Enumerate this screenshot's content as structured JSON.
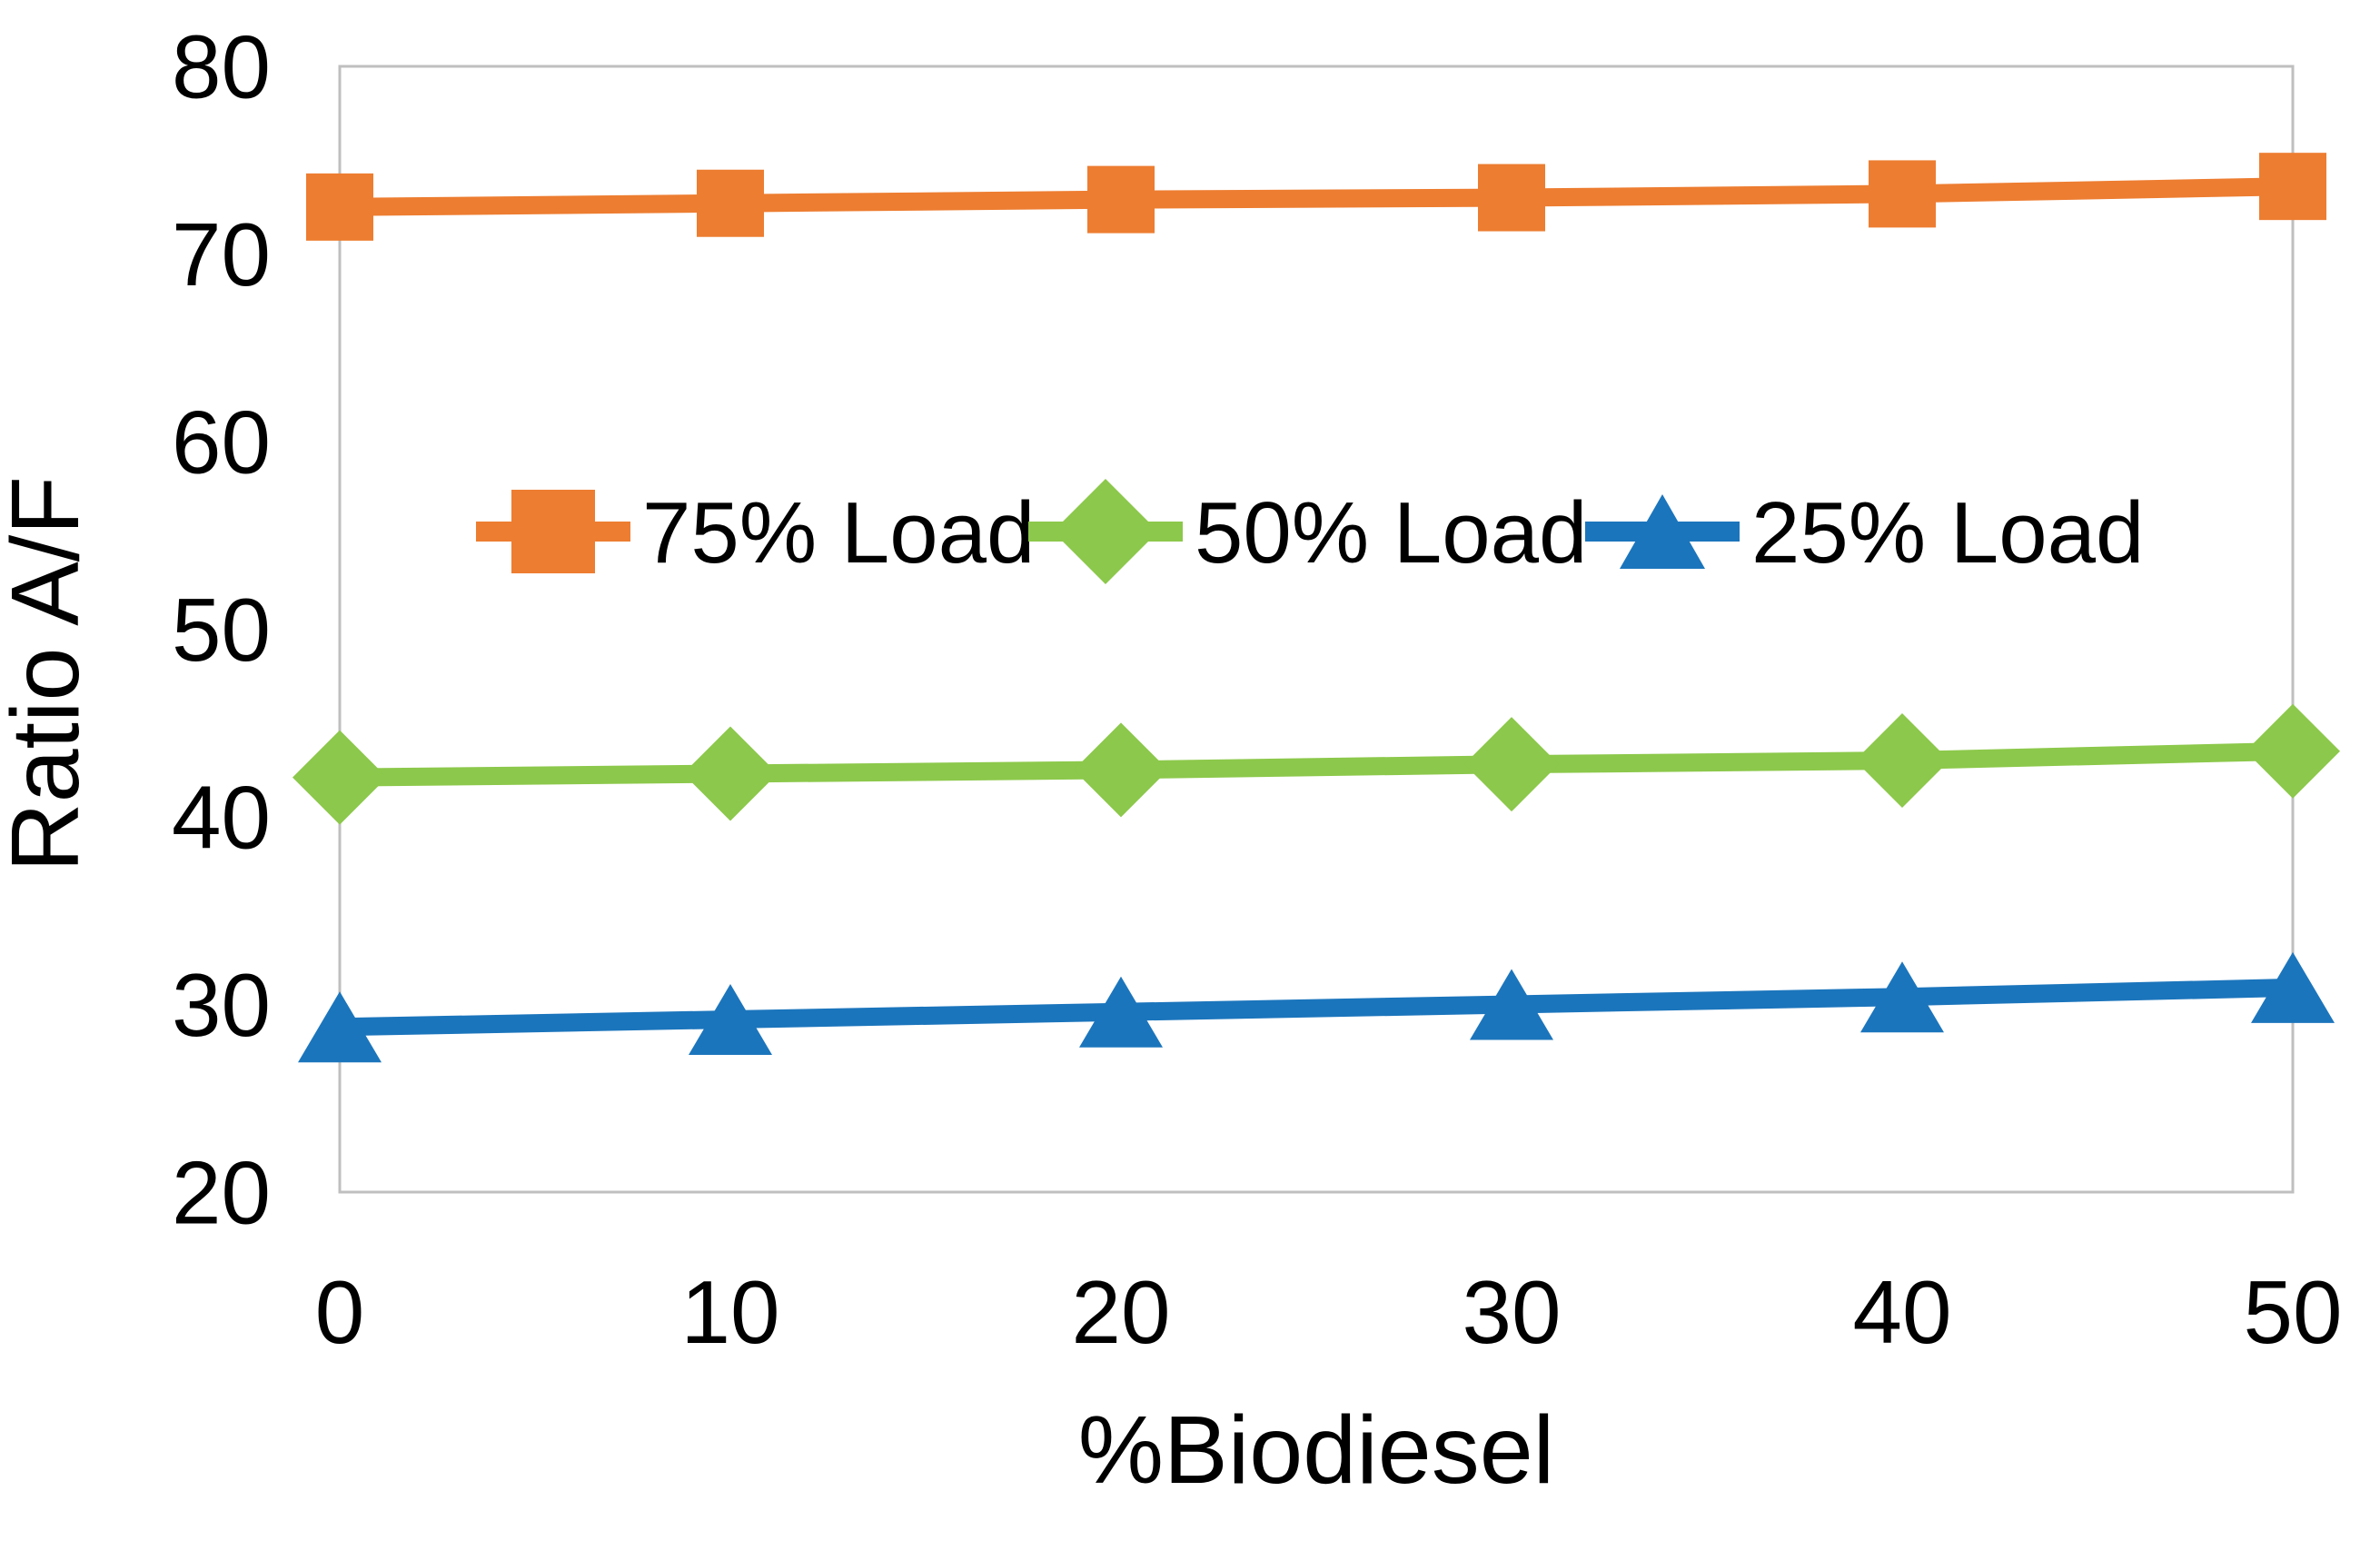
{
  "colors": {
    "background": "#FFFFFF",
    "plot_border": "#BFBFBF",
    "text": "#000000",
    "series_orange": "#ED7D31",
    "series_green": "#8CC84B",
    "series_blue": "#1B75BC"
  },
  "chart_data": {
    "type": "line",
    "title": "",
    "xlabel": "%Biodiesel",
    "ylabel": "Ratio A/F",
    "x": [
      0,
      10,
      20,
      30,
      40,
      50
    ],
    "xticks": [
      "0",
      "10",
      "20",
      "30",
      "40",
      "50"
    ],
    "yticks": [
      "20",
      "30",
      "40",
      "50",
      "60",
      "70",
      "80"
    ],
    "ytick_values": [
      20,
      30,
      40,
      50,
      60,
      70,
      80
    ],
    "xlim": [
      0,
      50
    ],
    "ylim": [
      20,
      80
    ],
    "grid": false,
    "legend_position": "inside-top-center",
    "series": [
      {
        "name": "75% Load",
        "marker": "square",
        "color": "#ED7D31",
        "values": [
          72.5,
          72.7,
          72.9,
          73.0,
          73.2,
          73.6
        ]
      },
      {
        "name": "50% Load",
        "marker": "diamond",
        "color": "#8CC84B",
        "values": [
          42.1,
          42.3,
          42.5,
          42.8,
          43.0,
          43.5
        ]
      },
      {
        "name": "25% Load",
        "marker": "triangle",
        "color": "#1B75BC",
        "values": [
          28.8,
          29.2,
          29.6,
          30.0,
          30.4,
          30.9
        ]
      }
    ]
  }
}
